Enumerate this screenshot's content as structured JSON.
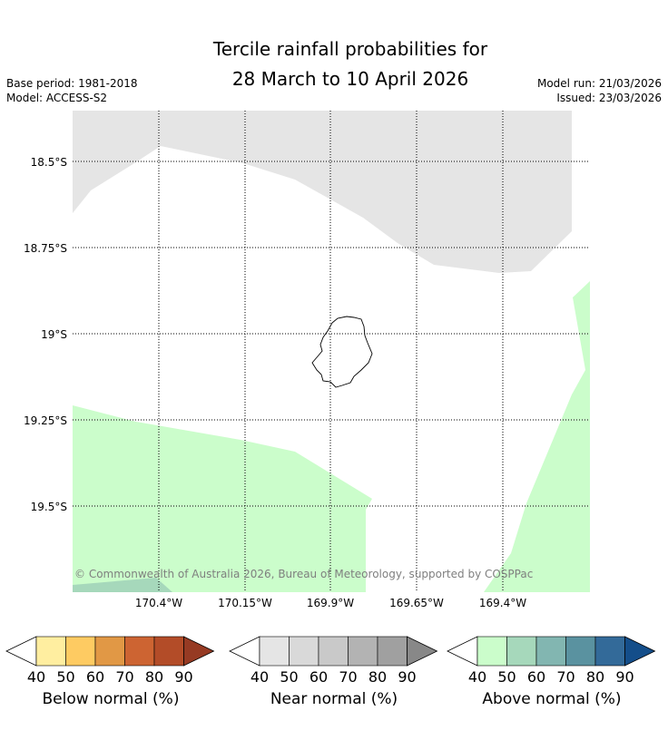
{
  "title_line1": "Tercile rainfall probabilities for",
  "title_line2": "28 March to 10 April 2026",
  "base_period": "Base period: 1981-2018",
  "model": "Model: ACCESS-S2",
  "model_run": "Model run: 21/03/2026",
  "issued": "Issued: 23/03/2026",
  "copyright": "© Commonwealth of Australia 2026, Bureau of Meteorology, supported by COSPPac",
  "lat_labels": [
    "18.5°S",
    "18.75°S",
    "19°S",
    "19.25°S",
    "19.5°S"
  ],
  "lon_labels": [
    "170.4°W",
    "170.15°W",
    "169.9°W",
    "169.65°W",
    "169.4°W"
  ],
  "colorbars": [
    {
      "title": "Below normal (%)",
      "ticks": [
        "40",
        "50",
        "60",
        "70",
        "80",
        "90"
      ],
      "colors": [
        "#ffeea0",
        "#fecb62",
        "#e19845",
        "#cd6432",
        "#b34c28",
        "#963a23"
      ]
    },
    {
      "title": "Near normal (%)",
      "ticks": [
        "40",
        "50",
        "60",
        "70",
        "80",
        "90"
      ],
      "colors": [
        "#e5e5e5",
        "#d9d9d9",
        "#c9c9c9",
        "#b3b3b3",
        "#a0a0a0",
        "#888888"
      ]
    },
    {
      "title": "Above normal (%)",
      "ticks": [
        "40",
        "50",
        "60",
        "70",
        "80",
        "90"
      ],
      "colors": [
        "#cbfdcb",
        "#a6d8bb",
        "#82b6b1",
        "#5a92a0",
        "#336a99",
        "#144e8a"
      ]
    }
  ],
  "map_colors": {
    "near_normal_fill": "#e5e5e5",
    "above_normal_fill": "#cbfdcb",
    "above_normal_50_fill": "#a6d8bb",
    "island_outline": "#000000",
    "copyright_text": "#7f7f7f"
  }
}
